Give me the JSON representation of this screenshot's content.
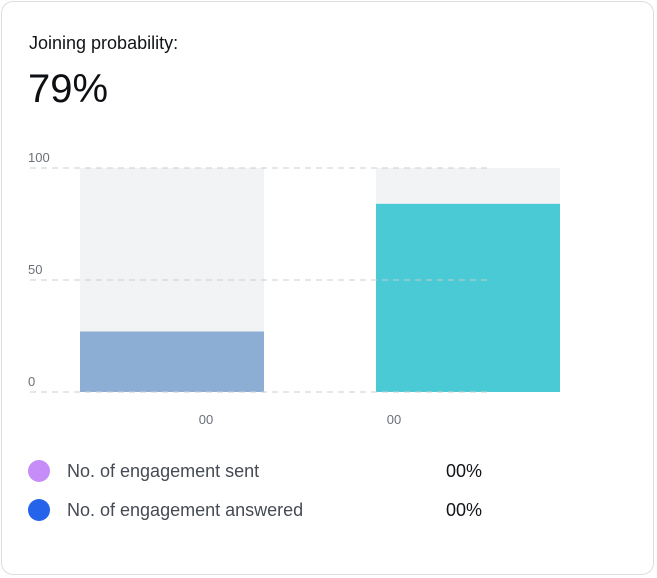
{
  "card": {
    "label": "Joining probability:",
    "value": "79%"
  },
  "chart_data": {
    "type": "bar",
    "categories": [
      "00",
      "00"
    ],
    "values": [
      27,
      84
    ],
    "track_value": 100,
    "ylim": [
      0,
      100
    ],
    "yticks": [
      "0",
      "50",
      "100"
    ],
    "title": "",
    "xlabel": "",
    "ylabel": "",
    "grid": true,
    "bar_colors": [
      "#8daed4",
      "#4acad4"
    ],
    "track_color": "#f2f3f5",
    "legend_placement": "bottom"
  },
  "legend": [
    {
      "label": "No. of engagement sent",
      "value": "00%",
      "color": "#c68cf7"
    },
    {
      "label": "No. of engagement answered",
      "value": "00%",
      "color": "#2563eb"
    }
  ]
}
